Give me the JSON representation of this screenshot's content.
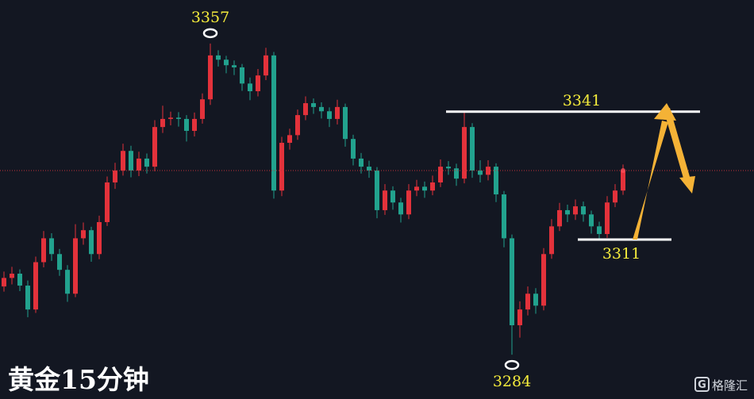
{
  "chart_data": {
    "type": "candlestick",
    "title": "黄金15分钟",
    "watermark": "格隆汇",
    "up_color": "#e3323b",
    "down_color": "#22a28e",
    "ylim": [
      3273.6,
      3367.2
    ],
    "series": [
      {
        "open": [
          3300.0,
          3302.0,
          3303.0,
          3300.2,
          3294.6,
          3305.7,
          3311.3,
          3307.6,
          3303.9,
          3298.3,
          3311.3,
          3313.2,
          3307.6,
          3315.1,
          3324.4,
          3327.2,
          3331.8,
          3327.2,
          3330.0,
          3328.1,
          3337.4,
          3339.3,
          3339.6,
          3339.3,
          3336.5,
          3339.3,
          3343.9,
          3354.2,
          3353.2,
          3351.9,
          3351.4,
          3347.6,
          3345.8,
          3349.5,
          3354.2,
          3322.5,
          3333.7,
          3335.5,
          3340.2,
          3343.0,
          3342.1,
          3341.1,
          3339.3,
          3342.1,
          3334.6,
          3330.0,
          3328.1,
          3327.2,
          3317.9,
          3322.5,
          3319.7,
          3316.9,
          3322.5,
          3323.4,
          3322.5,
          3324.4,
          3328.1,
          3327.7,
          3325.3,
          3337.4,
          3327.2,
          3326.2,
          3328.1,
          3321.6,
          3311.3,
          3290.9,
          3294.6,
          3298.3,
          3295.5,
          3307.6,
          3314.1,
          3317.9,
          3316.9,
          3318.8,
          3316.9,
          3314.1,
          3312.3,
          3319.7,
          3322.5
        ],
        "high": [
          3303.5,
          3304.6,
          3304.0,
          3301.4,
          3307.0,
          3313.0,
          3312.5,
          3308.8,
          3305.0,
          3314.6,
          3315.0,
          3314.0,
          3316.6,
          3325.8,
          3329.0,
          3333.5,
          3333.0,
          3331.6,
          3331.2,
          3339.0,
          3342.4,
          3341.0,
          3340.9,
          3340.2,
          3340.8,
          3345.3,
          3357.0,
          3355.4,
          3354.1,
          3353.0,
          3352.2,
          3349.0,
          3351.0,
          3356.0,
          3355.0,
          3335.1,
          3337.0,
          3341.5,
          3344.6,
          3344.1,
          3343.2,
          3342.0,
          3343.8,
          3342.9,
          3335.6,
          3331.3,
          3329.5,
          3328.0,
          3324.0,
          3323.5,
          3320.8,
          3324.0,
          3325.0,
          3324.6,
          3326.0,
          3329.8,
          3329.4,
          3328.8,
          3341.0,
          3338.3,
          3329.6,
          3329.6,
          3328.9,
          3322.4,
          3312.2,
          3296.5,
          3300.0,
          3299.6,
          3309.0,
          3315.8,
          3319.6,
          3319.2,
          3320.4,
          3319.9,
          3317.8,
          3315.2,
          3321.2,
          3324.0,
          3328.6
        ],
        "low": [
          3298.8,
          3300.5,
          3298.9,
          3292.8,
          3293.8,
          3304.5,
          3306.0,
          3302.5,
          3296.4,
          3297.5,
          3309.8,
          3305.8,
          3306.4,
          3314.2,
          3322.9,
          3326.0,
          3325.6,
          3325.9,
          3326.5,
          3327.0,
          3336.0,
          3337.8,
          3337.5,
          3334.0,
          3335.2,
          3338.2,
          3342.6,
          3351.6,
          3350.0,
          3349.6,
          3345.9,
          3343.7,
          3344.6,
          3348.4,
          3320.6,
          3321.2,
          3332.1,
          3334.4,
          3339.0,
          3340.5,
          3339.4,
          3337.4,
          3338.0,
          3332.8,
          3328.4,
          3326.5,
          3325.5,
          3316.0,
          3316.8,
          3318.0,
          3315.0,
          3315.8,
          3321.2,
          3320.8,
          3321.4,
          3323.3,
          3326.2,
          3323.6,
          3324.2,
          3325.5,
          3324.4,
          3324.9,
          3319.8,
          3309.2,
          3284.0,
          3288.0,
          3293.2,
          3293.6,
          3294.4,
          3306.5,
          3313.0,
          3315.1,
          3315.6,
          3315.2,
          3312.4,
          3311.0,
          3311.4,
          3318.6,
          3321.5
        ],
        "close": [
          3302.0,
          3303.0,
          3300.2,
          3294.6,
          3305.7,
          3311.3,
          3307.6,
          3303.9,
          3298.3,
          3311.3,
          3313.2,
          3307.6,
          3315.1,
          3324.4,
          3327.2,
          3331.8,
          3327.2,
          3330.0,
          3328.1,
          3337.4,
          3339.3,
          3339.6,
          3339.3,
          3336.5,
          3339.3,
          3343.9,
          3354.2,
          3353.2,
          3351.9,
          3351.4,
          3347.6,
          3345.8,
          3349.5,
          3354.2,
          3322.5,
          3333.7,
          3335.5,
          3340.2,
          3343.0,
          3342.1,
          3341.1,
          3339.3,
          3342.1,
          3334.6,
          3330.0,
          3328.1,
          3327.2,
          3317.9,
          3322.5,
          3319.7,
          3316.9,
          3322.5,
          3323.4,
          3322.5,
          3324.4,
          3328.1,
          3327.7,
          3325.3,
          3337.4,
          3327.2,
          3326.2,
          3328.1,
          3321.6,
          3311.3,
          3290.9,
          3294.6,
          3298.3,
          3295.5,
          3307.6,
          3314.1,
          3317.9,
          3316.9,
          3318.8,
          3316.9,
          3314.1,
          3312.3,
          3319.7,
          3322.5,
          3327.2
        ]
      }
    ],
    "extremes": {
      "high": 3357,
      "low": 3284
    },
    "levels": [
      3341,
      3311
    ]
  }
}
